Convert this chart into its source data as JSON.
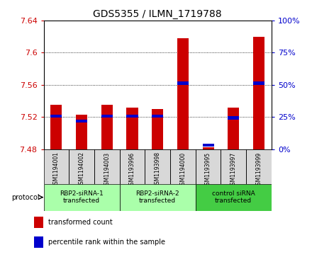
{
  "title": "GDS5355 / ILMN_1719788",
  "samples": [
    "GSM1194001",
    "GSM1194002",
    "GSM1194003",
    "GSM1193996",
    "GSM1193998",
    "GSM1194000",
    "GSM1193995",
    "GSM1193997",
    "GSM1193999"
  ],
  "transformed_count": [
    7.535,
    7.523,
    7.535,
    7.532,
    7.53,
    7.618,
    7.482,
    7.532,
    7.62
  ],
  "percentile_rank": [
    7.521,
    7.515,
    7.521,
    7.521,
    7.521,
    7.562,
    7.485,
    7.519,
    7.562
  ],
  "baseline": 7.48,
  "ylim": [
    7.48,
    7.64
  ],
  "yticks": [
    7.48,
    7.52,
    7.56,
    7.6,
    7.64
  ],
  "right_yticks": [
    0,
    25,
    50,
    75,
    100
  ],
  "groups": [
    {
      "label": "RBP2-siRNA-1\ntransfected",
      "start": 0,
      "end": 3,
      "color": "#aaffaa"
    },
    {
      "label": "RBP2-siRNA-2\ntransfected",
      "start": 3,
      "end": 6,
      "color": "#aaffaa"
    },
    {
      "label": "control siRNA\ntransfected",
      "start": 6,
      "end": 9,
      "color": "#44cc44"
    }
  ],
  "bar_color": "#cc0000",
  "percentile_color": "#0000cc",
  "bar_width": 0.45,
  "left_tick_color": "#cc0000",
  "right_tick_color": "#0000cc",
  "background_color": "#ffffff",
  "sample_box_color": "#d8d8d8",
  "legend_items": [
    {
      "color": "#cc0000",
      "label": "transformed count"
    },
    {
      "color": "#0000cc",
      "label": "percentile rank within the sample"
    }
  ]
}
